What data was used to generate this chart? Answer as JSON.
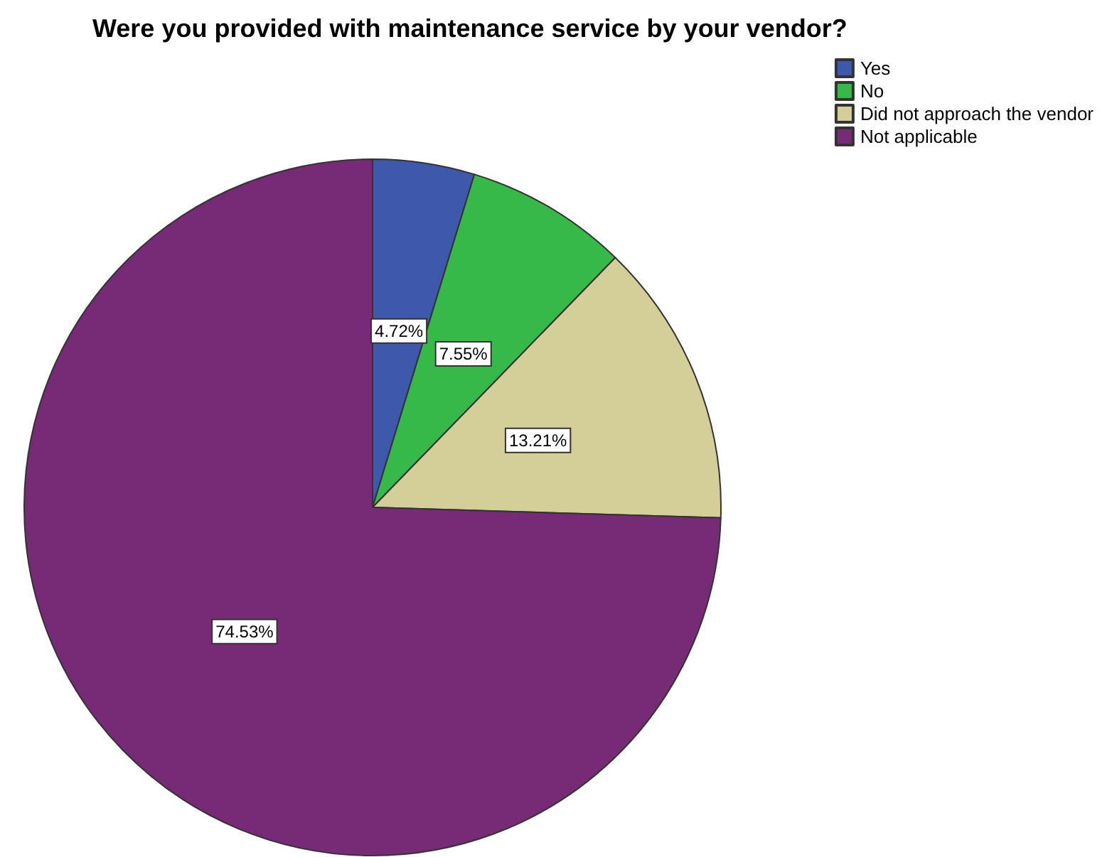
{
  "chart_data": {
    "type": "pie",
    "title": "Were you provided with maintenance service by your vendor?",
    "categories": [
      "Yes",
      "No",
      "Did not approach the vendor",
      "Not applicable"
    ],
    "values": [
      4.72,
      7.55,
      13.21,
      74.53
    ],
    "value_labels": [
      "4.72%",
      "7.55%",
      "13.21%",
      "74.53%"
    ],
    "colors": [
      "#3e58ac",
      "#37b94a",
      "#d4cf98",
      "#772a76"
    ],
    "legend": "top right"
  }
}
